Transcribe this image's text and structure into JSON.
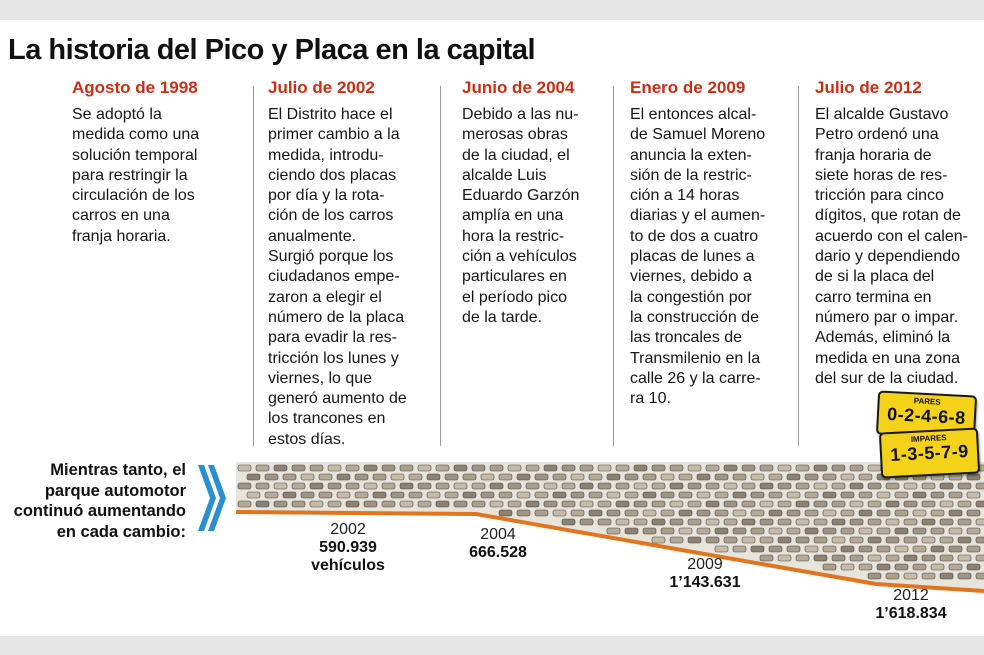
{
  "title": "La historia del Pico y Placa en la capital",
  "timeline": [
    {
      "date": "Agosto de 1998",
      "text": "Se adoptó la\nmedida como una\nsolución temporal\npara restringir la\ncirculación de los\ncarros en una\nfranja horaria."
    },
    {
      "date": "Julio de 2002",
      "text": "El Distrito hace el\nprimer cambio a la\nmedida, introdu-\nciendo dos placas\npor día y la rota-\nción de los carros\nanualmente.\nSurgió porque los\nciudadanos empe-\nzaron a elegir el\nnúmero de la placa\npara evadir la res-\ntricción los lunes y\nviernes, lo que\ngeneró aumento de\nlos trancones en\nestos días."
    },
    {
      "date": "Junio de 2004",
      "text": "Debido a las nu-\nmerosas obras\nde la ciudad, el\nalcalde Luis\nEduardo Garzón\namplía en una\nhora la restric-\nción a vehículos\nparticulares en\nel período pico\nde la tarde."
    },
    {
      "date": "Enero de 2009",
      "text": "El entonces alcal-\nde Samuel Moreno\nanuncia la exten-\nsión de la restric-\nción a 14 horas\ndiarias y el aumen-\nto de dos a cuatro\nplacas de lunes a\nviernes, debido a\nla congestión por\nla construcción de\nlas troncales de\nTransmilenio en la\ncalle 26 y la carre-\nra 10."
    },
    {
      "date": "Julio de 2012",
      "text": "El alcalde Gustavo\nPetro ordenó una\nfranja horaria de\nsiete horas de res-\ntricción para cinco\ndígitos, que rotan de\nacuerdo con el calen-\ndario y dependiendo\nde si la placa del\ncarro termina en\nnúmero par o impar.\nAdemás, eliminó la\nmedida en una zona\ndel sur de la ciudad."
    }
  ],
  "plates": [
    {
      "label": "PARES",
      "digits": "0-2-4-6-8"
    },
    {
      "label": "IMPARES",
      "digits": "1-3-5-7-9"
    }
  ],
  "fleet": {
    "lead": "Mientras tanto, el\nparque automotor\ncontinuó aumentando\nen cada cambio:",
    "points": [
      {
        "year": "2002",
        "value": "590.939",
        "unit": "vehículos"
      },
      {
        "year": "2004",
        "value": "666.528",
        "unit": ""
      },
      {
        "year": "2009",
        "value": "1’143.631",
        "unit": ""
      },
      {
        "year": "2012",
        "value": "1’618.834",
        "unit": ""
      }
    ]
  },
  "colors": {
    "date": "#cc2e14",
    "line": "#e0751e",
    "chevron": "#2a8fd0",
    "plate": "#f4d21a"
  }
}
